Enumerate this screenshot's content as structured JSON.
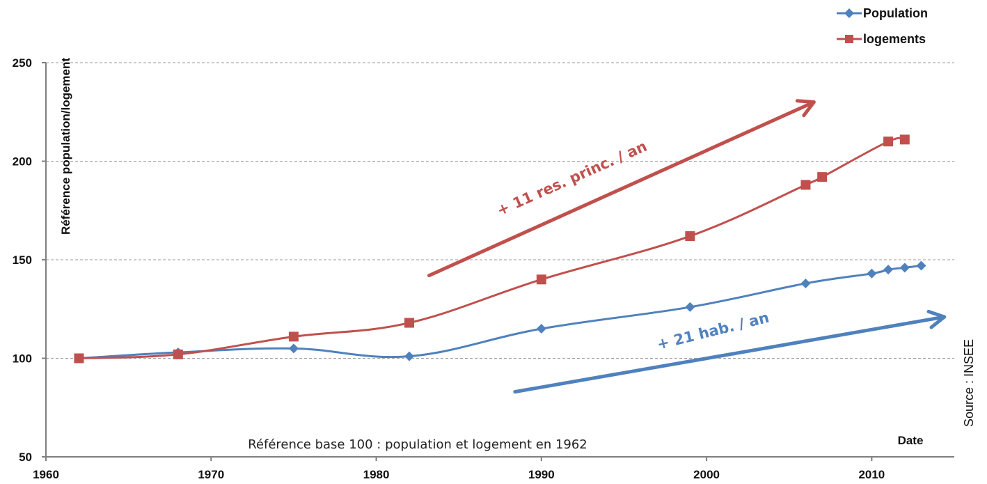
{
  "chart_data": {
    "type": "line",
    "ylabel": "Référence population/logement",
    "xlabel": "Date",
    "xlim": [
      1960,
      2015
    ],
    "ylim": [
      50,
      250
    ],
    "xticks": [
      1960,
      1970,
      1980,
      1990,
      2000,
      2010
    ],
    "yticks": [
      50,
      100,
      150,
      200,
      250
    ],
    "grid": "horizontal dashed",
    "legend_position": "top-right",
    "series": [
      {
        "name": "Population",
        "color": "#4f81bd",
        "marker": "diamond",
        "x": [
          1962,
          1968,
          1975,
          1982,
          1990,
          1999,
          2006,
          2010,
          2011,
          2012,
          2013
        ],
        "values": [
          100,
          103,
          105,
          101,
          115,
          126,
          138,
          143,
          145,
          146,
          147
        ]
      },
      {
        "name": "logements",
        "color": "#c0504d",
        "marker": "square",
        "x": [
          1962,
          1968,
          1975,
          1982,
          1990,
          1999,
          2006,
          2007,
          2011,
          2012
        ],
        "values": [
          100,
          102,
          111,
          118,
          140,
          162,
          188,
          192,
          210,
          211
        ]
      }
    ],
    "annotations": {
      "note": "Référence base 100 : population et logement en 1962",
      "source": "Source : INSEE",
      "red_arrow_label": "+ 11 res. princ. / an",
      "blue_arrow_label": "+ 21 hab. / an"
    }
  }
}
